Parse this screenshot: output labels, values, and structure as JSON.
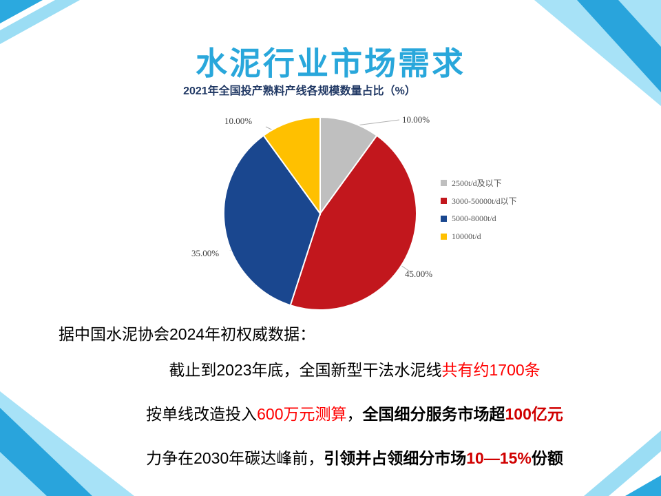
{
  "slide": {
    "title": "水泥行业市场需求",
    "body": {
      "line1": "据中国水泥协会2024年初权威数据：",
      "line2_segments": [
        {
          "text": "截止到2023年底，全国新型干法水泥线",
          "color": "#000000",
          "bold": false
        },
        {
          "text": "共有约1700条",
          "color": "#FF0000",
          "bold": false
        }
      ],
      "line3_segments": [
        {
          "text": "按单线改造投入",
          "color": "#000000",
          "bold": false
        },
        {
          "text": "600万元测算",
          "color": "#FF0000",
          "bold": false
        },
        {
          "text": "，",
          "color": "#000000",
          "bold": false
        },
        {
          "text": "全国细分服务市场超",
          "color": "#000000",
          "bold": true
        },
        {
          "text": "100亿元",
          "color": "#D00000",
          "bold": true
        }
      ],
      "line4_segments": [
        {
          "text": "力争在2030年碳达峰前，",
          "color": "#000000",
          "bold": false
        },
        {
          "text": "引领并占领细分市场",
          "color": "#000000",
          "bold": true
        },
        {
          "text": "10—15%",
          "color": "#D00000",
          "bold": true
        },
        {
          "text": "份额",
          "color": "#000000",
          "bold": true
        }
      ]
    }
  },
  "chart_data": {
    "type": "pie",
    "title": "2021年全国投产熟料产线各规模数量占比（%）",
    "slices": [
      {
        "name": "2500t/d及以下",
        "value": 10.0,
        "label": "10.00%",
        "color": "#BFBFBF"
      },
      {
        "name": "3000-50000t/d以下",
        "value": 45.0,
        "label": "45.00%",
        "color": "#C2171D"
      },
      {
        "name": "5000-8000t/d",
        "value": 35.0,
        "label": "35.00%",
        "color": "#1A478F"
      },
      {
        "name": "10000t/d",
        "value": 10.0,
        "label": "10.00%",
        "color": "#FFC000"
      }
    ],
    "start_angle_deg": 0,
    "direction": "clockwise",
    "legend_position": "right"
  },
  "colors": {
    "slide_title": "#29A7DB",
    "chart_title": "#203864",
    "red_text": "#FF0000",
    "bold_red_text": "#D00000",
    "decoration_light": "#A7E2F7",
    "decoration_mid": "#9BDDF4",
    "decoration_dark": "#1E9ED9"
  }
}
